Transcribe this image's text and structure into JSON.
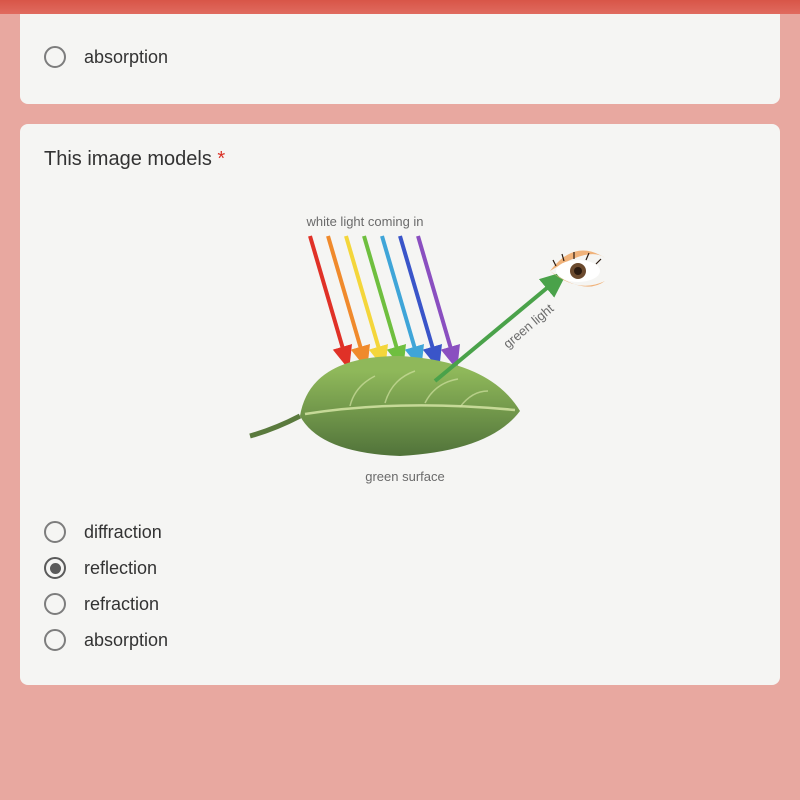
{
  "previous_question": {
    "last_option": {
      "label": "absorption",
      "selected": false
    }
  },
  "question": {
    "text": "This image models",
    "required_mark": "*",
    "options": [
      {
        "label": "diffraction",
        "selected": false
      },
      {
        "label": "reflection",
        "selected": true
      },
      {
        "label": "refraction",
        "selected": false
      },
      {
        "label": "absorption",
        "selected": false
      }
    ]
  },
  "diagram": {
    "labels": {
      "incoming": "white light coming in",
      "outgoing": "green light",
      "surface": "green surface"
    },
    "ray_colors": [
      "#e03127",
      "#f08a2c",
      "#f4d63b",
      "#6fbf3f",
      "#3fa5d8",
      "#3a55c9",
      "#8a4fc0"
    ],
    "leaf_colors": {
      "top": "#8fb85a",
      "bottom": "#51733a",
      "vein": "#cfe0a0",
      "stem": "#5a7a3d"
    },
    "arrow_color": "#4aa24a",
    "eye_colors": {
      "skin": "#f0b27a",
      "white": "#ffffff",
      "iris": "#6b4a2e",
      "pupil": "#2a1a10"
    },
    "label_color": "#6b6b6b",
    "label_fontsize": 13
  }
}
